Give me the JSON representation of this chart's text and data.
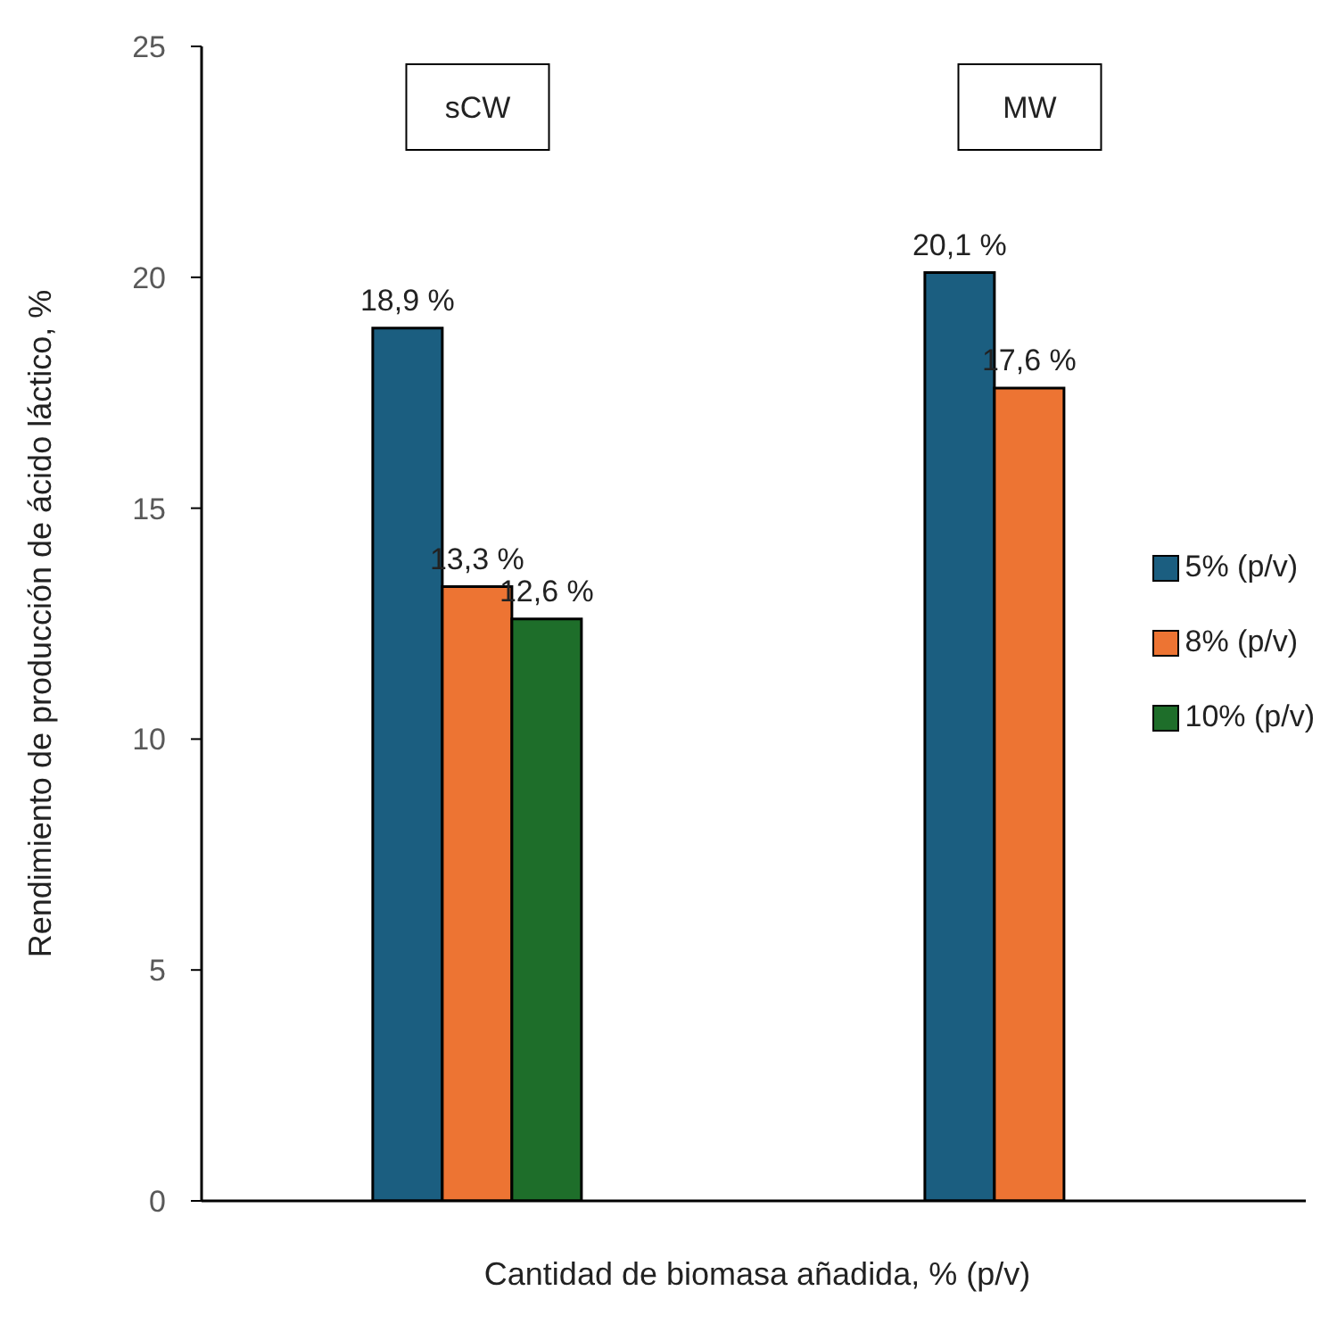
{
  "chart_data": {
    "type": "bar",
    "xlabel": "Cantidad de biomasa añadida, % (p/v)",
    "ylabel": "Rendimiento de producción de ácido láctico, %",
    "categories": [
      "sCW",
      "MW"
    ],
    "series": [
      {
        "name": "5% (p/v)",
        "color": "#1b5e80",
        "values": [
          18.9,
          20.1
        ],
        "value_labels": [
          "18,9 %",
          "20,1 %"
        ]
      },
      {
        "name": "8% (p/v)",
        "color": "#ed7433",
        "values": [
          13.3,
          17.6
        ],
        "value_labels": [
          "13,3 %",
          "17,6 %"
        ]
      },
      {
        "name": "10% (p/v)",
        "color": "#1e6e2a",
        "values": [
          12.6,
          null
        ],
        "value_labels": [
          "12,6 %",
          null
        ]
      }
    ],
    "ylim": [
      0,
      25
    ],
    "yticks": [
      0,
      5,
      10,
      15,
      20,
      25
    ],
    "grid": false,
    "legend": "right"
  }
}
